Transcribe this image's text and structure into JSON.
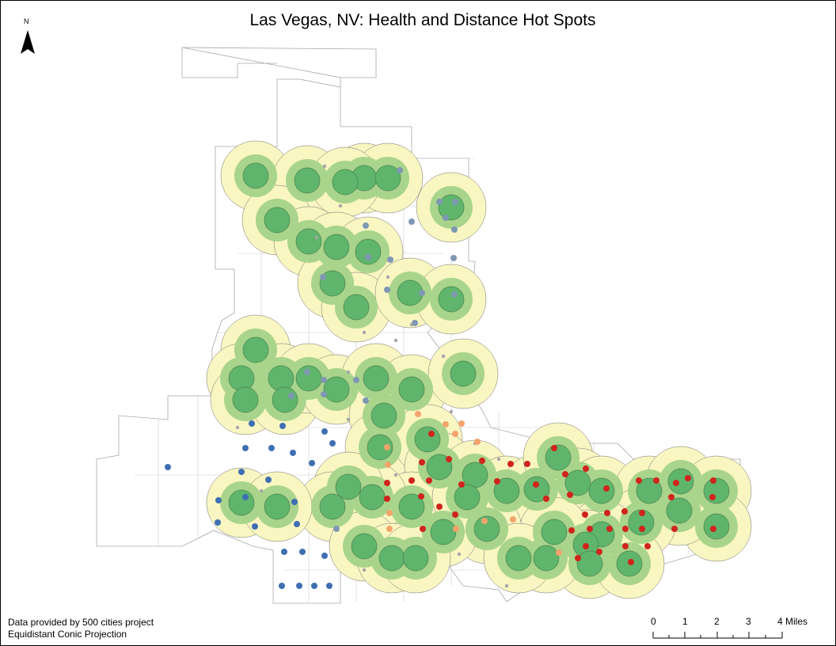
{
  "title": "Las Vegas, NV: Health and Distance Hot Spots",
  "north_arrow": {
    "letter": "N",
    "icon": "north-arrow-icon"
  },
  "credits": {
    "line1": "Data provided by 500 cities project",
    "line2": "Equidistant Conic Projection"
  },
  "scale_bar": {
    "ticks": [
      "0",
      "1",
      "2",
      "3",
      "4 Miles"
    ]
  },
  "colors": {
    "outer_buffer": "#f9f6c2",
    "mid_buffer": "#a9d48b",
    "inner_hotspot": "#5fb56b",
    "boundary": "#a8a8a8",
    "point_blue": "#3f6fb3",
    "point_grayblue": "#7f97b3",
    "point_gray": "#a6a6a6",
    "point_orange": "#f4a36c",
    "point_red": "#d0241c"
  }
}
